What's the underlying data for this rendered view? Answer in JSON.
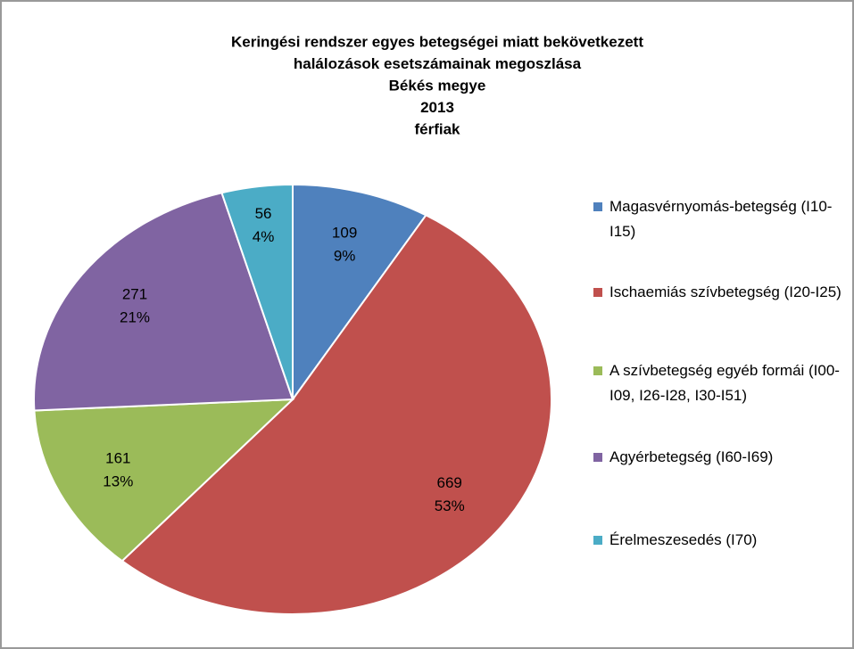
{
  "chart_data": {
    "type": "pie",
    "title": [
      "Keringési rendszer egyes betegségei miatt bekövetkezett",
      "halálozások  esetszámainak megoszlása",
      "Békés megye",
      "2013",
      "férfiak"
    ],
    "categories": [
      "Magasvérnyomás-betegség (I10-I15)",
      "Ischaemiás szívbetegség (I20-I25)",
      "A szívbetegség egyéb formái (I00-I09, I26-I28, I30-I51)",
      "Agyérbetegség (I60-I69)",
      "Érelmeszesedés (I70)"
    ],
    "values": [
      109,
      669,
      161,
      271,
      56
    ],
    "percentage_labels": [
      "9%",
      "53%",
      "13%",
      "21%",
      "4%"
    ],
    "colors": [
      "#4f81bd",
      "#c0504d",
      "#9bbb59",
      "#8064a2",
      "#4bacc6"
    ],
    "legend": "right"
  }
}
